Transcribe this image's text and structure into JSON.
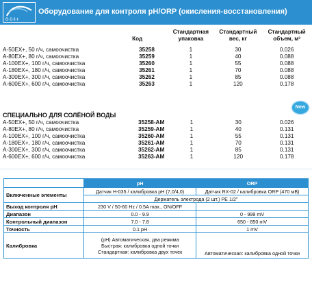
{
  "header": {
    "logo_text": "ö·ü·t·r",
    "title": "Оборудование для контроля pH/ORP (окисления-восстановления)",
    "bg_color": "#2b8fd0"
  },
  "products": {
    "columns": [
      "Код",
      "Стандартная упаковка",
      "Стандартный вес, кг",
      "Стандартный объем, м³"
    ],
    "rows": [
      {
        "name": "A-50EX+, 50 г/ч, самоочистка",
        "code": "35258",
        "pack": "1",
        "weight": "30",
        "volume": "0.026"
      },
      {
        "name": "A-80EX+, 80 г/ч, самоочистка",
        "code": "35259",
        "pack": "1",
        "weight": "40",
        "volume": "0.088"
      },
      {
        "name": "A-100EX+, 100 г/ч, самоочистка",
        "code": "35260",
        "pack": "1",
        "weight": "55",
        "volume": "0.088"
      },
      {
        "name": "A-180EX+, 180 г/ч, самоочистка",
        "code": "35261",
        "pack": "1",
        "weight": "70",
        "volume": "0.088"
      },
      {
        "name": "A-300EX+, 300 г/ч, самоочистка",
        "code": "35262",
        "pack": "1",
        "weight": "85",
        "volume": "0.088"
      },
      {
        "name": "A-600EX+, 600 г/ч, самоочистка",
        "code": "35263",
        "pack": "1",
        "weight": "120",
        "volume": "0.178"
      }
    ]
  },
  "salt": {
    "title": "СПЕЦИАЛЬНО ДЛЯ СОЛЁНОЙ ВОДЫ",
    "badge": "New",
    "rows": [
      {
        "name": "A-50EX+, 50 г/ч, самоочистка",
        "code": "35258-AM",
        "pack": "1",
        "weight": "30",
        "volume": "0.026"
      },
      {
        "name": "A-80EX+, 80 г/ч, самоочистка",
        "code": "35259-AM",
        "pack": "1",
        "weight": "40",
        "volume": "0.131"
      },
      {
        "name": "A-100EX+, 100 г/ч, самоочистка",
        "code": "35260-AM",
        "pack": "1",
        "weight": "55",
        "volume": "0.131"
      },
      {
        "name": "A-180EX+, 180 г/ч, самоочистка",
        "code": "35261-AM",
        "pack": "1",
        "weight": "70",
        "volume": "0.131"
      },
      {
        "name": "A-300EX+, 300 г/ч, самоочистка",
        "code": "35262-AM",
        "pack": "1",
        "weight": "85",
        "volume": "0.131"
      },
      {
        "name": "A-600EX+, 600 г/ч, самоочистка",
        "code": "35263-AM",
        "pack": "1",
        "weight": "120",
        "volume": "0.178"
      }
    ]
  },
  "spec": {
    "col_ph": "pH",
    "col_orp": "ORP",
    "included_label": "Включенные элементы",
    "included_ph": "Датчик H-035 / калибровка pH (7,0/4,0)",
    "included_orp": "Датчик RX-02 / калибровка ORP (470 мВ)",
    "included_common": "Держатель электрода (2 шт.) PE 1/2\"",
    "output_label": "Выход контроля pH",
    "output_value": "230 V / 50-60 Hz / 0.5A max., ON/OFF",
    "range_label": "Диапазон",
    "range_ph": "0.0 - 9.9",
    "range_orp": "0 - 999 mV",
    "control_label": "Контрольный диапазон",
    "control_ph": "7.0 - 7.8",
    "control_orp": "650 - 850 mV",
    "accuracy_label": "Точность",
    "accuracy_ph": "0.1 pH",
    "accuracy_orp": "1 mV",
    "calib_label": "Калибровка",
    "calib_ph_1": "(pH) Автоматическая, два режима",
    "calib_ph_2": "Быстрая: калибровка одной точки",
    "calib_ph_3": "Стандартная: калибровка двух точек",
    "calib_orp": "Автоматическая: калибровка одной точки"
  }
}
